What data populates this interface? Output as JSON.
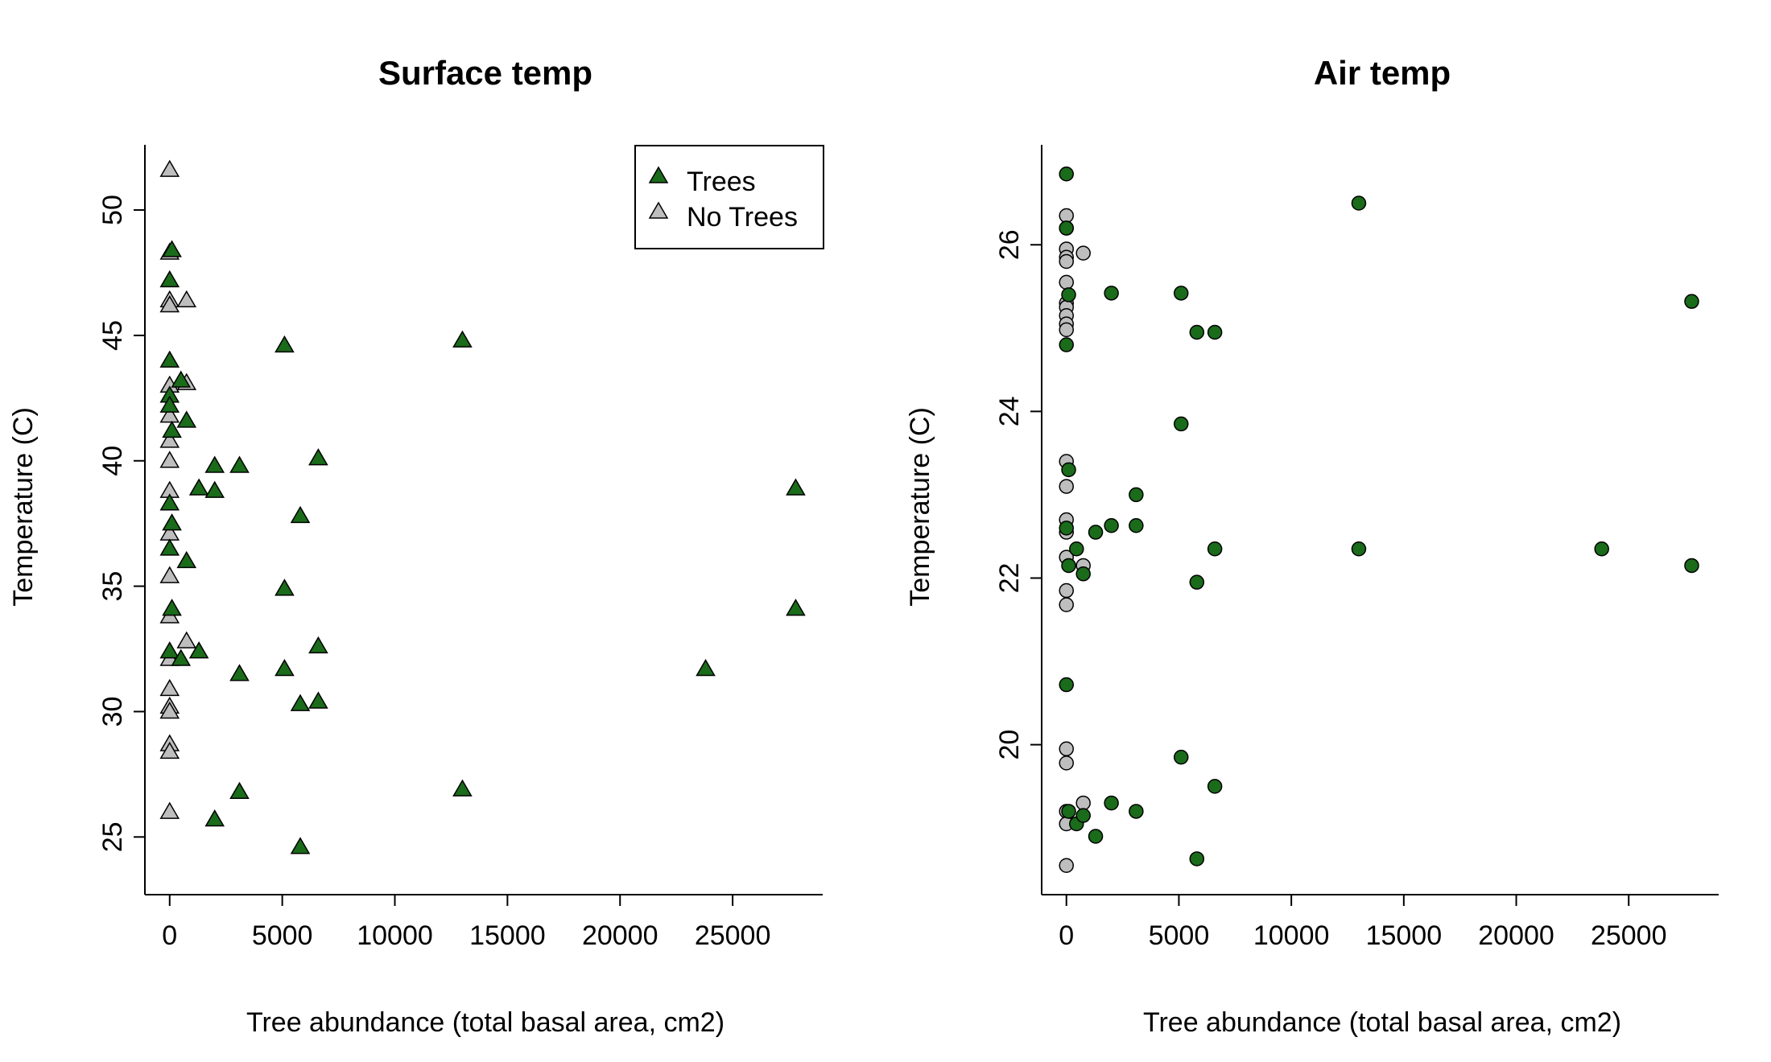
{
  "chart_data": [
    {
      "type": "scatter",
      "title": "Surface temp",
      "xlabel": "Tree abundance (total basal area, cm2)",
      "ylabel": "Temperature (C)",
      "xlim": [
        -1100,
        29000
      ],
      "ylim": [
        22.7,
        52.6
      ],
      "xticks": [
        0,
        5000,
        10000,
        15000,
        20000,
        25000
      ],
      "yticks": [
        25,
        30,
        35,
        40,
        45,
        50
      ],
      "marker": "triangle",
      "legend": {
        "position": "top-right",
        "entries": [
          {
            "label": "Trees",
            "color": "#1a6b1a"
          },
          {
            "label": "No Trees",
            "color": "#bebebe"
          }
        ]
      },
      "series": [
        {
          "name": "Trees",
          "color": "#1a6b1a",
          "points": [
            [
              0,
              47.2
            ],
            [
              0,
              44.0
            ],
            [
              0,
              42.6
            ],
            [
              0,
              42.2
            ],
            [
              0,
              38.3
            ],
            [
              0,
              36.5
            ],
            [
              0,
              32.4
            ],
            [
              100,
              48.4
            ],
            [
              100,
              41.2
            ],
            [
              100,
              37.5
            ],
            [
              100,
              34.1
            ],
            [
              500,
              43.2
            ],
            [
              500,
              32.1
            ],
            [
              750,
              41.6
            ],
            [
              750,
              36.0
            ],
            [
              1300,
              38.9
            ],
            [
              1300,
              32.4
            ],
            [
              2000,
              39.8
            ],
            [
              2000,
              38.8
            ],
            [
              2000,
              25.7
            ],
            [
              3100,
              39.8
            ],
            [
              3100,
              31.5
            ],
            [
              3100,
              26.8
            ],
            [
              5100,
              44.6
            ],
            [
              5100,
              34.9
            ],
            [
              5100,
              31.7
            ],
            [
              5800,
              37.8
            ],
            [
              5800,
              30.3
            ],
            [
              5800,
              24.6
            ],
            [
              6600,
              40.1
            ],
            [
              6600,
              32.6
            ],
            [
              6600,
              30.4
            ],
            [
              13000,
              44.8
            ],
            [
              13000,
              26.9
            ],
            [
              23800,
              31.7
            ],
            [
              27800,
              38.9
            ],
            [
              27800,
              34.1
            ]
          ]
        },
        {
          "name": "No Trees",
          "color": "#bebebe",
          "points": [
            [
              0,
              51.6
            ],
            [
              0,
              48.3
            ],
            [
              0,
              46.4
            ],
            [
              0,
              46.2
            ],
            [
              0,
              43.0
            ],
            [
              0,
              41.8
            ],
            [
              0,
              40.8
            ],
            [
              0,
              40.0
            ],
            [
              0,
              38.8
            ],
            [
              0,
              37.1
            ],
            [
              0,
              35.4
            ],
            [
              0,
              33.8
            ],
            [
              0,
              32.1
            ],
            [
              0,
              30.9
            ],
            [
              0,
              30.2
            ],
            [
              0,
              30.0
            ],
            [
              0,
              28.7
            ],
            [
              0,
              28.4
            ],
            [
              0,
              26.0
            ],
            [
              750,
              46.4
            ],
            [
              750,
              43.1
            ],
            [
              750,
              32.8
            ]
          ]
        }
      ]
    },
    {
      "type": "scatter",
      "title": "Air temp",
      "xlabel": "Tree abundance (total basal area, cm2)",
      "ylabel": "Temperature (C)",
      "xlim": [
        -1100,
        29000
      ],
      "ylim": [
        18.2,
        27.2
      ],
      "xticks": [
        0,
        5000,
        10000,
        15000,
        20000,
        25000
      ],
      "yticks": [
        20,
        22,
        24,
        26
      ],
      "marker": "circle",
      "series": [
        {
          "name": "Trees",
          "color": "#1a6b1a",
          "points": [
            [
              0,
              26.85
            ],
            [
              0,
              26.2
            ],
            [
              0,
              24.8
            ],
            [
              0,
              22.6
            ],
            [
              0,
              20.72
            ],
            [
              100,
              25.4
            ],
            [
              100,
              23.3
            ],
            [
              100,
              22.15
            ],
            [
              100,
              19.2
            ],
            [
              450,
              22.35
            ],
            [
              450,
              19.05
            ],
            [
              750,
              22.05
            ],
            [
              750,
              19.15
            ],
            [
              1300,
              22.55
            ],
            [
              1300,
              18.9
            ],
            [
              2000,
              25.42
            ],
            [
              2000,
              22.63
            ],
            [
              2000,
              19.3
            ],
            [
              3100,
              23.0
            ],
            [
              3100,
              22.63
            ],
            [
              3100,
              19.2
            ],
            [
              5100,
              25.42
            ],
            [
              5100,
              23.85
            ],
            [
              5100,
              19.85
            ],
            [
              5800,
              24.95
            ],
            [
              5800,
              21.95
            ],
            [
              5800,
              18.63
            ],
            [
              6600,
              24.95
            ],
            [
              6600,
              22.35
            ],
            [
              6600,
              19.5
            ],
            [
              13000,
              26.5
            ],
            [
              13000,
              22.35
            ],
            [
              23800,
              22.35
            ],
            [
              27800,
              25.32
            ],
            [
              27800,
              22.15
            ]
          ]
        },
        {
          "name": "No Trees",
          "color": "#bebebe",
          "points": [
            [
              0,
              26.35
            ],
            [
              0,
              26.2
            ],
            [
              0,
              25.95
            ],
            [
              0,
              25.85
            ],
            [
              0,
              25.8
            ],
            [
              0,
              25.55
            ],
            [
              0,
              25.3
            ],
            [
              0,
              25.25
            ],
            [
              0,
              25.15
            ],
            [
              0,
              25.05
            ],
            [
              0,
              24.98
            ],
            [
              0,
              23.4
            ],
            [
              0,
              23.1
            ],
            [
              0,
              22.7
            ],
            [
              0,
              22.55
            ],
            [
              0,
              22.25
            ],
            [
              0,
              21.85
            ],
            [
              0,
              21.68
            ],
            [
              0,
              19.95
            ],
            [
              0,
              19.78
            ],
            [
              0,
              19.2
            ],
            [
              0,
              19.05
            ],
            [
              0,
              18.55
            ],
            [
              750,
              25.9
            ],
            [
              750,
              22.15
            ],
            [
              750,
              19.3
            ]
          ]
        }
      ]
    }
  ]
}
